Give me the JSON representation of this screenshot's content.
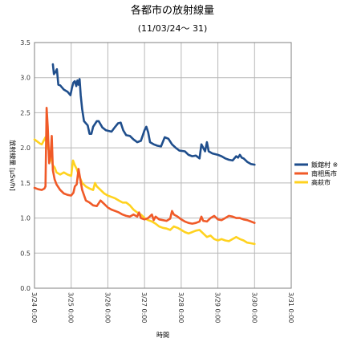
{
  "chart_data": {
    "type": "line",
    "title": "各都市の放射線量",
    "subtitle": "(11/03/24～ 31)",
    "xlabel": "時間",
    "ylabel": "放射線量 [μSv/h]",
    "ylim": [
      0,
      3.5
    ],
    "xlim": [
      0,
      7
    ],
    "y_ticks": [
      "0.0",
      "0.5",
      "1.0",
      "1.5",
      "2.0",
      "2.5",
      "3.0",
      "3.5"
    ],
    "x_ticks": [
      "3/24 0:00",
      "3/25 0:00",
      "3/26 0:00",
      "3/27 0:00",
      "3/28 0:00",
      "3/29 0:00",
      "3/30 0:00",
      "3/31 0:00"
    ],
    "grid": true,
    "legend_position": "right",
    "series": [
      {
        "name": "飯舘村 ※",
        "color": "#1f4e8c",
        "points": [
          [
            0.5,
            3.19
          ],
          [
            0.53,
            3.05
          ],
          [
            0.57,
            3.08
          ],
          [
            0.61,
            3.12
          ],
          [
            0.65,
            2.9
          ],
          [
            0.7,
            2.89
          ],
          [
            0.8,
            2.83
          ],
          [
            0.9,
            2.8
          ],
          [
            0.98,
            2.75
          ],
          [
            1.02,
            2.85
          ],
          [
            1.06,
            2.93
          ],
          [
            1.1,
            2.95
          ],
          [
            1.14,
            2.88
          ],
          [
            1.17,
            2.96
          ],
          [
            1.2,
            2.9
          ],
          [
            1.23,
            2.98
          ],
          [
            1.26,
            2.75
          ],
          [
            1.3,
            2.55
          ],
          [
            1.35,
            2.38
          ],
          [
            1.45,
            2.32
          ],
          [
            1.5,
            2.2
          ],
          [
            1.55,
            2.2
          ],
          [
            1.6,
            2.3
          ],
          [
            1.7,
            2.38
          ],
          [
            1.75,
            2.38
          ],
          [
            1.85,
            2.29
          ],
          [
            1.95,
            2.25
          ],
          [
            2.1,
            2.23
          ],
          [
            2.2,
            2.3
          ],
          [
            2.28,
            2.35
          ],
          [
            2.35,
            2.36
          ],
          [
            2.42,
            2.25
          ],
          [
            2.5,
            2.18
          ],
          [
            2.6,
            2.17
          ],
          [
            2.7,
            2.12
          ],
          [
            2.8,
            2.08
          ],
          [
            2.9,
            2.1
          ],
          [
            3.0,
            2.25
          ],
          [
            3.05,
            2.3
          ],
          [
            3.1,
            2.22
          ],
          [
            3.15,
            2.08
          ],
          [
            3.25,
            2.05
          ],
          [
            3.35,
            2.03
          ],
          [
            3.45,
            2.02
          ],
          [
            3.55,
            2.15
          ],
          [
            3.65,
            2.13
          ],
          [
            3.75,
            2.05
          ],
          [
            3.85,
            2.0
          ],
          [
            3.95,
            1.96
          ],
          [
            4.1,
            1.95
          ],
          [
            4.2,
            1.9
          ],
          [
            4.3,
            1.88
          ],
          [
            4.4,
            1.89
          ],
          [
            4.5,
            1.85
          ],
          [
            4.55,
            2.05
          ],
          [
            4.6,
            2.0
          ],
          [
            4.65,
            1.95
          ],
          [
            4.7,
            2.08
          ],
          [
            4.75,
            1.95
          ],
          [
            4.85,
            1.92
          ],
          [
            5.0,
            1.9
          ],
          [
            5.1,
            1.88
          ],
          [
            5.2,
            1.85
          ],
          [
            5.3,
            1.83
          ],
          [
            5.4,
            1.82
          ],
          [
            5.5,
            1.88
          ],
          [
            5.55,
            1.86
          ],
          [
            5.6,
            1.9
          ],
          [
            5.65,
            1.86
          ],
          [
            5.7,
            1.85
          ],
          [
            5.8,
            1.8
          ],
          [
            5.9,
            1.77
          ],
          [
            6.0,
            1.76
          ]
        ]
      },
      {
        "name": "南相馬市",
        "color": "#f05a28",
        "points": [
          [
            0.0,
            1.43
          ],
          [
            0.1,
            1.41
          ],
          [
            0.2,
            1.4
          ],
          [
            0.27,
            1.42
          ],
          [
            0.3,
            1.45
          ],
          [
            0.33,
            2.57
          ],
          [
            0.36,
            2.3
          ],
          [
            0.4,
            1.78
          ],
          [
            0.44,
            1.9
          ],
          [
            0.47,
            2.17
          ],
          [
            0.5,
            1.68
          ],
          [
            0.55,
            1.55
          ],
          [
            0.6,
            1.48
          ],
          [
            0.7,
            1.4
          ],
          [
            0.8,
            1.35
          ],
          [
            0.9,
            1.33
          ],
          [
            1.0,
            1.32
          ],
          [
            1.06,
            1.36
          ],
          [
            1.1,
            1.45
          ],
          [
            1.15,
            1.48
          ],
          [
            1.2,
            1.7
          ],
          [
            1.25,
            1.55
          ],
          [
            1.3,
            1.4
          ],
          [
            1.4,
            1.25
          ],
          [
            1.5,
            1.22
          ],
          [
            1.6,
            1.18
          ],
          [
            1.7,
            1.17
          ],
          [
            1.8,
            1.25
          ],
          [
            1.9,
            1.2
          ],
          [
            2.0,
            1.15
          ],
          [
            2.1,
            1.12
          ],
          [
            2.2,
            1.1
          ],
          [
            2.3,
            1.08
          ],
          [
            2.4,
            1.05
          ],
          [
            2.5,
            1.03
          ],
          [
            2.6,
            1.02
          ],
          [
            2.7,
            1.05
          ],
          [
            2.8,
            1.02
          ],
          [
            2.85,
            1.08
          ],
          [
            2.9,
            1.0
          ],
          [
            3.0,
            0.98
          ],
          [
            3.1,
            1.0
          ],
          [
            3.2,
            1.05
          ],
          [
            3.25,
            0.97
          ],
          [
            3.3,
            1.02
          ],
          [
            3.4,
            0.98
          ],
          [
            3.5,
            0.97
          ],
          [
            3.6,
            0.96
          ],
          [
            3.7,
            0.99
          ],
          [
            3.75,
            1.1
          ],
          [
            3.8,
            1.05
          ],
          [
            3.9,
            1.02
          ],
          [
            4.0,
            0.98
          ],
          [
            4.1,
            0.95
          ],
          [
            4.2,
            0.93
          ],
          [
            4.3,
            0.92
          ],
          [
            4.4,
            0.93
          ],
          [
            4.5,
            0.95
          ],
          [
            4.55,
            1.02
          ],
          [
            4.6,
            0.96
          ],
          [
            4.7,
            0.95
          ],
          [
            4.8,
            1.0
          ],
          [
            4.9,
            1.03
          ],
          [
            5.0,
            0.98
          ],
          [
            5.1,
            0.97
          ],
          [
            5.2,
            1.0
          ],
          [
            5.3,
            1.03
          ],
          [
            5.4,
            1.02
          ],
          [
            5.5,
            1.0
          ],
          [
            5.6,
            1.0
          ],
          [
            5.7,
            0.98
          ],
          [
            5.8,
            0.97
          ],
          [
            5.9,
            0.95
          ],
          [
            6.0,
            0.93
          ]
        ]
      },
      {
        "name": "高萩市",
        "color": "#ffd21f",
        "points": [
          [
            0.0,
            2.12
          ],
          [
            0.05,
            2.1
          ],
          [
            0.1,
            2.08
          ],
          [
            0.15,
            2.06
          ],
          [
            0.2,
            2.05
          ],
          [
            0.25,
            2.1
          ],
          [
            0.3,
            2.15
          ],
          [
            0.35,
            2.02
          ],
          [
            0.4,
            1.95
          ],
          [
            0.45,
            1.85
          ],
          [
            0.5,
            1.75
          ],
          [
            0.55,
            1.72
          ],
          [
            0.6,
            1.65
          ],
          [
            0.7,
            1.62
          ],
          [
            0.8,
            1.65
          ],
          [
            0.9,
            1.62
          ],
          [
            1.0,
            1.6
          ],
          [
            1.05,
            1.82
          ],
          [
            1.1,
            1.75
          ],
          [
            1.15,
            1.7
          ],
          [
            1.2,
            1.62
          ],
          [
            1.3,
            1.5
          ],
          [
            1.4,
            1.45
          ],
          [
            1.5,
            1.42
          ],
          [
            1.6,
            1.4
          ],
          [
            1.65,
            1.5
          ],
          [
            1.7,
            1.45
          ],
          [
            1.8,
            1.4
          ],
          [
            1.9,
            1.35
          ],
          [
            2.0,
            1.32
          ],
          [
            2.1,
            1.3
          ],
          [
            2.2,
            1.28
          ],
          [
            2.3,
            1.25
          ],
          [
            2.4,
            1.22
          ],
          [
            2.5,
            1.22
          ],
          [
            2.6,
            1.18
          ],
          [
            2.7,
            1.12
          ],
          [
            2.8,
            1.08
          ],
          [
            2.9,
            1.05
          ],
          [
            3.0,
            1.0
          ],
          [
            3.1,
            0.97
          ],
          [
            3.2,
            0.95
          ],
          [
            3.3,
            0.92
          ],
          [
            3.4,
            0.88
          ],
          [
            3.5,
            0.86
          ],
          [
            3.6,
            0.85
          ],
          [
            3.7,
            0.83
          ],
          [
            3.8,
            0.88
          ],
          [
            3.9,
            0.86
          ],
          [
            4.0,
            0.83
          ],
          [
            4.1,
            0.8
          ],
          [
            4.2,
            0.78
          ],
          [
            4.3,
            0.8
          ],
          [
            4.4,
            0.82
          ],
          [
            4.5,
            0.83
          ],
          [
            4.6,
            0.78
          ],
          [
            4.7,
            0.73
          ],
          [
            4.8,
            0.75
          ],
          [
            4.9,
            0.7
          ],
          [
            5.0,
            0.68
          ],
          [
            5.1,
            0.7
          ],
          [
            5.2,
            0.68
          ],
          [
            5.3,
            0.67
          ],
          [
            5.4,
            0.7
          ],
          [
            5.5,
            0.73
          ],
          [
            5.6,
            0.7
          ],
          [
            5.7,
            0.68
          ],
          [
            5.8,
            0.65
          ],
          [
            5.9,
            0.64
          ],
          [
            6.0,
            0.63
          ]
        ]
      }
    ]
  }
}
